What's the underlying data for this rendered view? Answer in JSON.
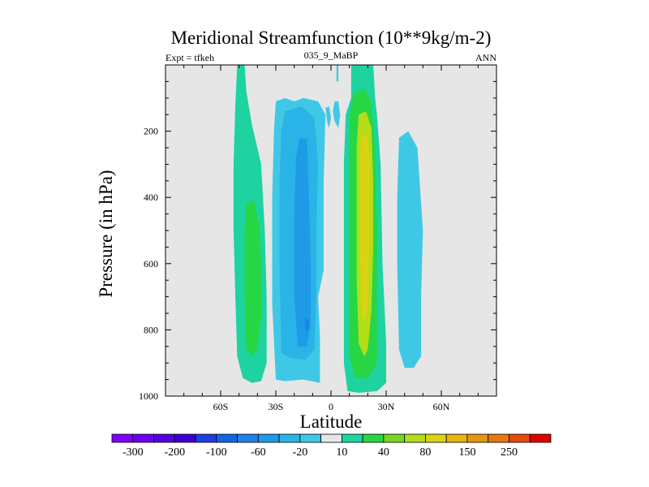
{
  "chart_data": {
    "type": "contour",
    "title": "Meridional Streamfunction (10**9kg/m-2)",
    "left_string": "Expt = tfkeh",
    "center_string": "035_9_MaBP",
    "right_string": "ANN",
    "xlabel": "Latitude",
    "ylabel": "Pressure (in hPa)",
    "xlim": [
      -90,
      90
    ],
    "ylim": [
      1000,
      0
    ],
    "x_ticks": [
      {
        "value": -60,
        "label": "60S"
      },
      {
        "value": -30,
        "label": "30S"
      },
      {
        "value": 0,
        "label": "0"
      },
      {
        "value": 30,
        "label": "30N"
      },
      {
        "value": 60,
        "label": "60N"
      }
    ],
    "y_ticks": [
      {
        "value": 200,
        "label": "200"
      },
      {
        "value": 400,
        "label": "400"
      },
      {
        "value": 600,
        "label": "600"
      },
      {
        "value": 800,
        "label": "800"
      },
      {
        "value": 1000,
        "label": "1000"
      }
    ],
    "background_color": "#e6e6e6",
    "colorbar": {
      "colors": [
        "#7f00ff",
        "#6a00f0",
        "#5200e0",
        "#3b00d6",
        "#1f3fe0",
        "#1464e6",
        "#1e82e8",
        "#1e9be6",
        "#29b3e6",
        "#3fc8e6",
        "#e6e6e6",
        "#1ed3a0",
        "#27d645",
        "#78d61e",
        "#b4dc18",
        "#dcd214",
        "#e6b40f",
        "#e6960f",
        "#e6780f",
        "#e64a0f",
        "#e00000"
      ],
      "labels": [
        "-300",
        "-200",
        "-100",
        "-60",
        "-20",
        "10",
        "40",
        "80",
        "150",
        "250"
      ]
    },
    "cells": [
      {
        "value": 15,
        "polygon": [
          [
            -51,
            0
          ],
          [
            -47,
            0
          ],
          [
            -46,
            80
          ],
          [
            -43,
            180
          ],
          [
            -38,
            300
          ],
          [
            -36,
            500
          ],
          [
            -35,
            700
          ],
          [
            -35,
            900
          ],
          [
            -38,
            955
          ],
          [
            -43,
            960
          ],
          [
            -48,
            945
          ],
          [
            -51,
            880
          ],
          [
            -52,
            700
          ],
          [
            -53,
            500
          ],
          [
            -53,
            300
          ],
          [
            -52,
            120
          ]
        ]
      },
      {
        "value": 35,
        "polygon": [
          [
            -46,
            420
          ],
          [
            -42,
            410
          ],
          [
            -39,
            480
          ],
          [
            -38,
            600
          ],
          [
            -38,
            760
          ],
          [
            -40,
            860
          ],
          [
            -43,
            880
          ],
          [
            -46,
            860
          ],
          [
            -47,
            700
          ],
          [
            -47,
            500
          ]
        ]
      },
      {
        "value": -10,
        "polygon": [
          [
            -30,
            110
          ],
          [
            -25,
            100
          ],
          [
            -20,
            110
          ],
          [
            -15,
            100
          ],
          [
            -7,
            110
          ],
          [
            -3,
            150
          ],
          [
            -4,
            360
          ],
          [
            -4,
            620
          ],
          [
            -7,
            700
          ],
          [
            -6,
            820
          ],
          [
            -6,
            960
          ],
          [
            -15,
            950
          ],
          [
            -25,
            955
          ],
          [
            -30,
            950
          ],
          [
            -32,
            720
          ],
          [
            -32,
            400
          ],
          [
            -31,
            200
          ]
        ]
      },
      {
        "value": -30,
        "polygon": [
          [
            -25,
            140
          ],
          [
            -16,
            125
          ],
          [
            -9,
            160
          ],
          [
            -7,
            300
          ],
          [
            -8,
            500
          ],
          [
            -8,
            700
          ],
          [
            -9,
            860
          ],
          [
            -14,
            890
          ],
          [
            -22,
            885
          ],
          [
            -27,
            870
          ],
          [
            -28,
            600
          ],
          [
            -28,
            350
          ],
          [
            -27,
            200
          ]
        ]
      },
      {
        "value": -50,
        "polygon": [
          [
            -17,
            220
          ],
          [
            -13,
            225
          ],
          [
            -12,
            400
          ],
          [
            -11,
            600
          ],
          [
            -11,
            780
          ],
          [
            -13,
            850
          ],
          [
            -18,
            850
          ],
          [
            -20,
            700
          ],
          [
            -20,
            450
          ],
          [
            -19,
            280
          ]
        ]
      },
      {
        "value": -70,
        "polygon": [
          [
            -14,
            765
          ],
          [
            -12,
            770
          ],
          [
            -12,
            800
          ],
          [
            -14,
            805
          ]
        ]
      },
      {
        "value": -10,
        "polygon": [
          [
            -3,
            130
          ],
          [
            -1,
            125
          ],
          [
            0,
            160
          ],
          [
            -1,
            190
          ],
          [
            -2,
            175
          ]
        ]
      },
      {
        "value": -10,
        "polygon": [
          [
            2,
            110
          ],
          [
            4,
            110
          ],
          [
            5,
            150
          ],
          [
            4,
            190
          ],
          [
            2,
            170
          ],
          [
            1,
            140
          ]
        ]
      },
      {
        "value": -10,
        "polygon": [
          [
            3,
            0
          ],
          [
            4,
            0
          ],
          [
            4,
            50
          ],
          [
            3,
            50
          ]
        ]
      },
      {
        "value": 15,
        "polygon": [
          [
            11,
            0
          ],
          [
            23,
            0
          ],
          [
            24,
            100
          ],
          [
            25,
            150
          ],
          [
            27,
            300
          ],
          [
            28,
            600
          ],
          [
            30,
            840
          ],
          [
            30,
            960
          ],
          [
            25,
            985
          ],
          [
            15,
            990
          ],
          [
            9,
            985
          ],
          [
            7,
            900
          ],
          [
            7,
            600
          ],
          [
            7,
            300
          ],
          [
            8,
            150
          ],
          [
            11,
            100
          ]
        ]
      },
      {
        "value": 35,
        "polygon": [
          [
            12,
            90
          ],
          [
            18,
            70
          ],
          [
            22,
            110
          ],
          [
            24,
            250
          ],
          [
            25,
            500
          ],
          [
            25,
            750
          ],
          [
            25,
            900
          ],
          [
            20,
            945
          ],
          [
            13,
            945
          ],
          [
            10,
            880
          ],
          [
            10,
            600
          ],
          [
            10,
            300
          ],
          [
            10,
            160
          ]
        ]
      },
      {
        "value": 60,
        "polygon": [
          [
            15,
            150
          ],
          [
            19,
            140
          ],
          [
            22,
            190
          ],
          [
            23,
            350
          ],
          [
            23,
            550
          ],
          [
            22,
            740
          ],
          [
            20,
            860
          ],
          [
            18,
            880
          ],
          [
            15,
            840
          ],
          [
            14,
            650
          ],
          [
            14,
            400
          ],
          [
            14,
            250
          ]
        ]
      },
      {
        "value": 90,
        "polygon": [
          [
            17,
            215
          ],
          [
            20,
            210
          ],
          [
            21,
            300
          ],
          [
            21,
            500
          ],
          [
            20,
            700
          ],
          [
            19,
            770
          ],
          [
            17,
            760
          ],
          [
            16,
            600
          ],
          [
            16,
            400
          ],
          [
            16,
            260
          ]
        ]
      },
      {
        "value": -10,
        "polygon": [
          [
            37,
            220
          ],
          [
            42,
            200
          ],
          [
            47,
            250
          ],
          [
            50,
            500
          ],
          [
            49,
            700
          ],
          [
            49,
            880
          ],
          [
            45,
            915
          ],
          [
            40,
            915
          ],
          [
            37,
            860
          ],
          [
            36,
            600
          ],
          [
            36,
            400
          ]
        ]
      }
    ]
  }
}
